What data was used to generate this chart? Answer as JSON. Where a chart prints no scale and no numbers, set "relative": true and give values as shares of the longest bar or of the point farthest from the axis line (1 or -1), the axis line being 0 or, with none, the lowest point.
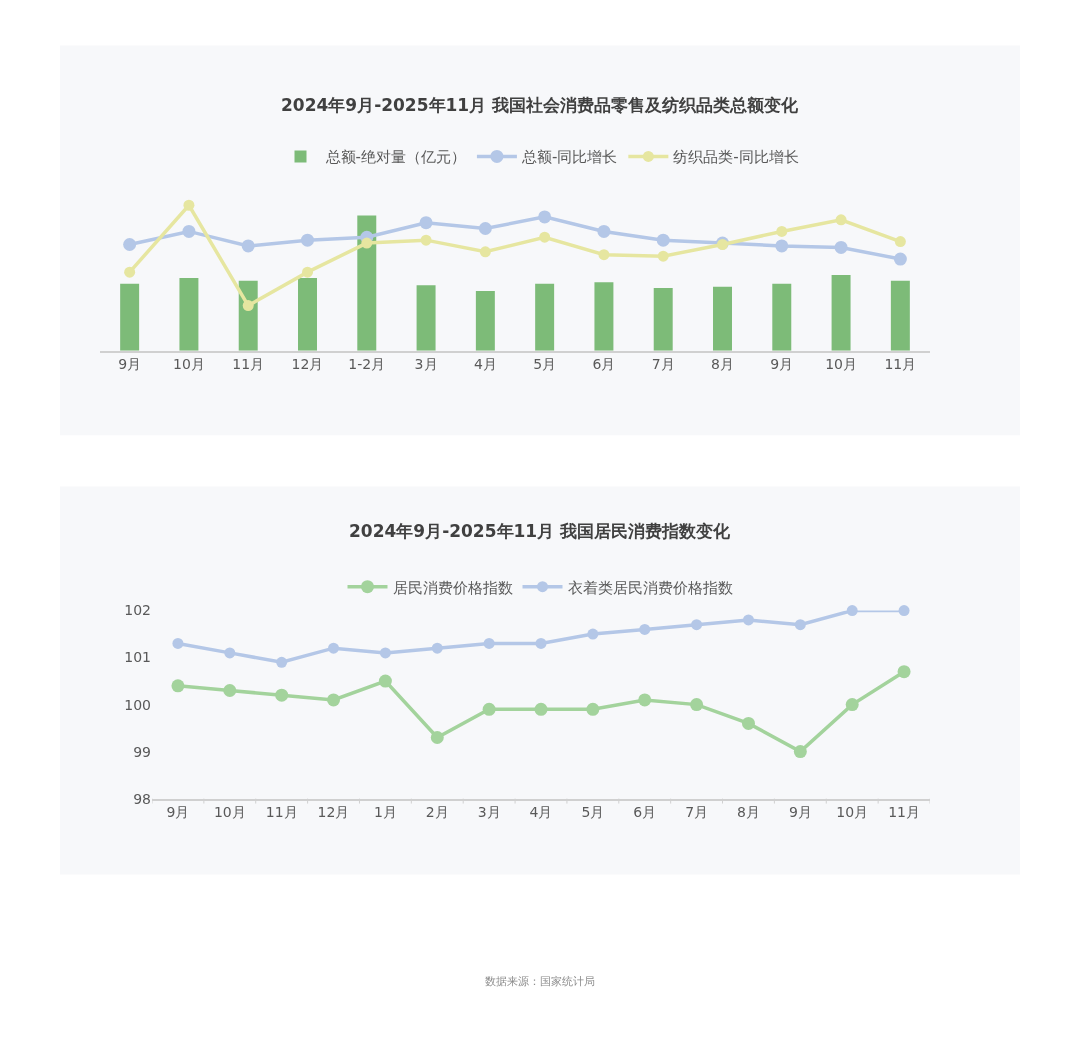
{
  "chart_data": [
    {
      "type": "bar",
      "title": "2024年9月-2025年11月 我国社会消费品零售及纺织品类总额变化",
      "relative": true,
      "legend": "top",
      "marker": "circle",
      "grid": false,
      "categories": [
        "9月",
        "10月",
        "11月",
        "12月",
        "1-2月",
        "3月",
        "4月",
        "5月",
        "6月",
        "7月",
        "8月",
        "9月",
        "10月",
        "11月"
      ],
      "series": [
        {
          "name": "总额-绝对量（亿元）",
          "type": "bar",
          "color": "#7dbb78",
          "values": [
            0.46,
            0.5,
            0.48,
            0.5,
            0.93,
            0.45,
            0.41,
            0.46,
            0.47,
            0.43,
            0.44,
            0.46,
            0.52,
            0.48
          ]
        },
        {
          "name": "总额-同比增长",
          "type": "line",
          "color": "#b4c7e7",
          "values": [
            0.73,
            0.82,
            0.72,
            0.76,
            0.78,
            0.88,
            0.84,
            0.92,
            0.82,
            0.76,
            0.74,
            0.72,
            0.71,
            0.63
          ]
        },
        {
          "name": "纺织品类-同比增长",
          "type": "line",
          "color": "#e6e6a0",
          "values": [
            0.54,
            1,
            0.31,
            0.54,
            0.74,
            0.76,
            0.68,
            0.78,
            0.66,
            0.65,
            0.73,
            0.82,
            0.9,
            0.75
          ]
        }
      ]
    },
    {
      "type": "line",
      "title": "2024年9月-2025年11月 我国居民消费指数变化",
      "legend": "top",
      "marker": "circle",
      "grid": false,
      "ylim": [
        98,
        102
      ],
      "yticks": [
        98,
        99,
        100,
        101,
        102
      ],
      "categories": [
        "9月",
        "10月",
        "11月",
        "12月",
        "1月",
        "2月",
        "3月",
        "4月",
        "5月",
        "6月",
        "7月",
        "8月",
        "9月",
        "10月",
        "11月"
      ],
      "annotations": [
        "数据来源：国家统计局"
      ],
      "series": [
        {
          "name": "居民消费价格指数",
          "color": "#a3d39c",
          "values": [
            100.4,
            100.3,
            100.2,
            100.1,
            100.5,
            99.3,
            99.9,
            99.9,
            99.9,
            100.1,
            100.0,
            99.6,
            99.0,
            100.0,
            100.7
          ]
        },
        {
          "name": "衣着类居民消费价格指数",
          "color": "#b4c7e7",
          "values": [
            101.3,
            101.1,
            100.9,
            101.2,
            101.1,
            101.2,
            101.3,
            101.3,
            101.5,
            101.6,
            101.7,
            101.8,
            101.7,
            102.0,
            102.0
          ]
        }
      ]
    }
  ]
}
